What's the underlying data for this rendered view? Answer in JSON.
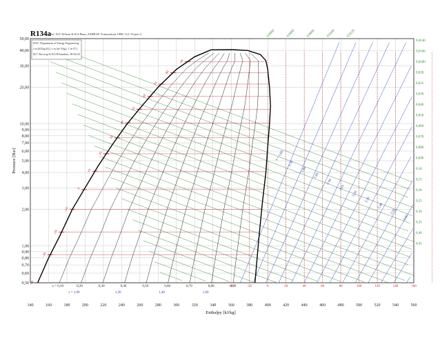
{
  "chart_data": {
    "type": "line",
    "title": "R134a",
    "reference": "Ref. D.P. Wilson & R.S.Basu, ASHRAE Transactions 1988, Vol. 94 part 2.",
    "credits": [
      "DTU, Department of Energy Engineering",
      "s in [kJ/(kg K)], v in [m^3/kg], T in [ºC]",
      "M.J. Skovrup & H.J.H Knudsen. 08-04-25"
    ],
    "xlabel": "Enthalpy [kJ/kg]",
    "ylabel": "Pressure [Bar]",
    "x_scale": "linear",
    "y_scale": "log",
    "xlim": [
      140,
      560
    ],
    "ylim": [
      0.5,
      50
    ],
    "x_ticks": [
      "140",
      "160",
      "180",
      "200",
      "220",
      "240",
      "260",
      "280",
      "300",
      "320",
      "340",
      "360",
      "380",
      "400",
      "420",
      "440",
      "460",
      "480",
      "500",
      "520",
      "540",
      "560"
    ],
    "y_ticks": [
      {
        "v": 50,
        "label": "50,00"
      },
      {
        "v": 40,
        "label": "40,00"
      },
      {
        "v": 30,
        "label": "30,00"
      },
      {
        "v": 20,
        "label": "20,00"
      },
      {
        "v": 10,
        "label": "10,00"
      },
      {
        "v": 9,
        "label": "9,00"
      },
      {
        "v": 8,
        "label": "8,00"
      },
      {
        "v": 7,
        "label": "7,00"
      },
      {
        "v": 6,
        "label": "6,00"
      },
      {
        "v": 5,
        "label": "5,00"
      },
      {
        "v": 4,
        "label": "4,00"
      },
      {
        "v": 3,
        "label": "3,00"
      },
      {
        "v": 2,
        "label": "2,00"
      },
      {
        "v": 1,
        "label": "1,00"
      },
      {
        "v": 0.9,
        "label": "0,90"
      },
      {
        "v": 0.8,
        "label": "0,80"
      },
      {
        "v": 0.7,
        "label": "0,70"
      },
      {
        "v": 0.6,
        "label": "0,60"
      },
      {
        "v": 0.5,
        "label": "0,50"
      }
    ],
    "saturation_curve": {
      "liquid": [
        [
          148,
          0.5
        ],
        [
          160,
          0.8
        ],
        [
          172,
          1.2
        ],
        [
          186,
          2.0
        ],
        [
          200,
          3.0
        ],
        [
          214,
          4.5
        ],
        [
          230,
          6.8
        ],
        [
          246,
          10
        ],
        [
          262,
          14
        ],
        [
          280,
          20
        ],
        [
          300,
          28
        ],
        [
          320,
          35.5
        ],
        [
          338,
          40.5
        ],
        [
          362,
          40.6
        ]
      ],
      "vapor": [
        [
          362,
          40.6
        ],
        [
          378,
          40.0
        ],
        [
          392,
          37
        ],
        [
          398,
          33
        ],
        [
          400,
          28
        ],
        [
          402,
          20
        ],
        [
          403,
          14
        ],
        [
          402,
          10
        ],
        [
          400,
          6.5
        ],
        [
          398,
          4
        ],
        [
          394,
          2.2
        ],
        [
          390,
          1.1
        ],
        [
          386,
          0.5
        ]
      ]
    },
    "quality_lines": {
      "labels": [
        "x = 0,10",
        "0,20",
        "0,30",
        "0,40",
        "0,50",
        "0,60",
        "0,70",
        "0,80",
        "0,90"
      ],
      "h_at_bottom": [
        170,
        194,
        218,
        242,
        266,
        290,
        314,
        338,
        362
      ]
    },
    "entropy_values_bottom": [
      "s = 1,00",
      "1,20",
      "1,40",
      "1,60"
    ],
    "temperature_labels_liquid": [
      "-40",
      "-30",
      "-20",
      "-10",
      "0",
      "10",
      "20",
      "30",
      "40",
      "50",
      "60",
      "70",
      "80",
      "90"
    ],
    "temperature_labels_bottom": [
      "-40",
      "-20",
      "0",
      "20",
      "40",
      "60",
      "80",
      "100",
      "120",
      "140",
      "160"
    ],
    "specific_volume_labels": [
      "0,0060",
      "0,0080",
      "0,0090",
      "0,0100",
      "0,0120",
      "0,0140",
      "0,0160",
      "0,0180",
      "0,020",
      "0,025",
      "0,030",
      "0,040",
      "0,050",
      "0,060",
      "0,070",
      "0,080",
      "0,090",
      "0,10",
      "0,15",
      "0,20",
      "0,25",
      "0,30",
      "0,35",
      "0,40",
      "0,45"
    ],
    "entropy_labels_vapor": [
      "s = 1,60",
      "1,70",
      "1,80",
      "1,90",
      "2,00",
      "2,10",
      "2,20",
      "2,30",
      "2,40",
      "2,50",
      "2,60"
    ],
    "colors": {
      "saturation": "#000000",
      "isotherm": "#c8232c",
      "specific_volume": "#2e8b2e",
      "entropy": "#2a3fb0",
      "quality": "#222222",
      "grid": "#b0b0b0"
    },
    "grid": true
  }
}
